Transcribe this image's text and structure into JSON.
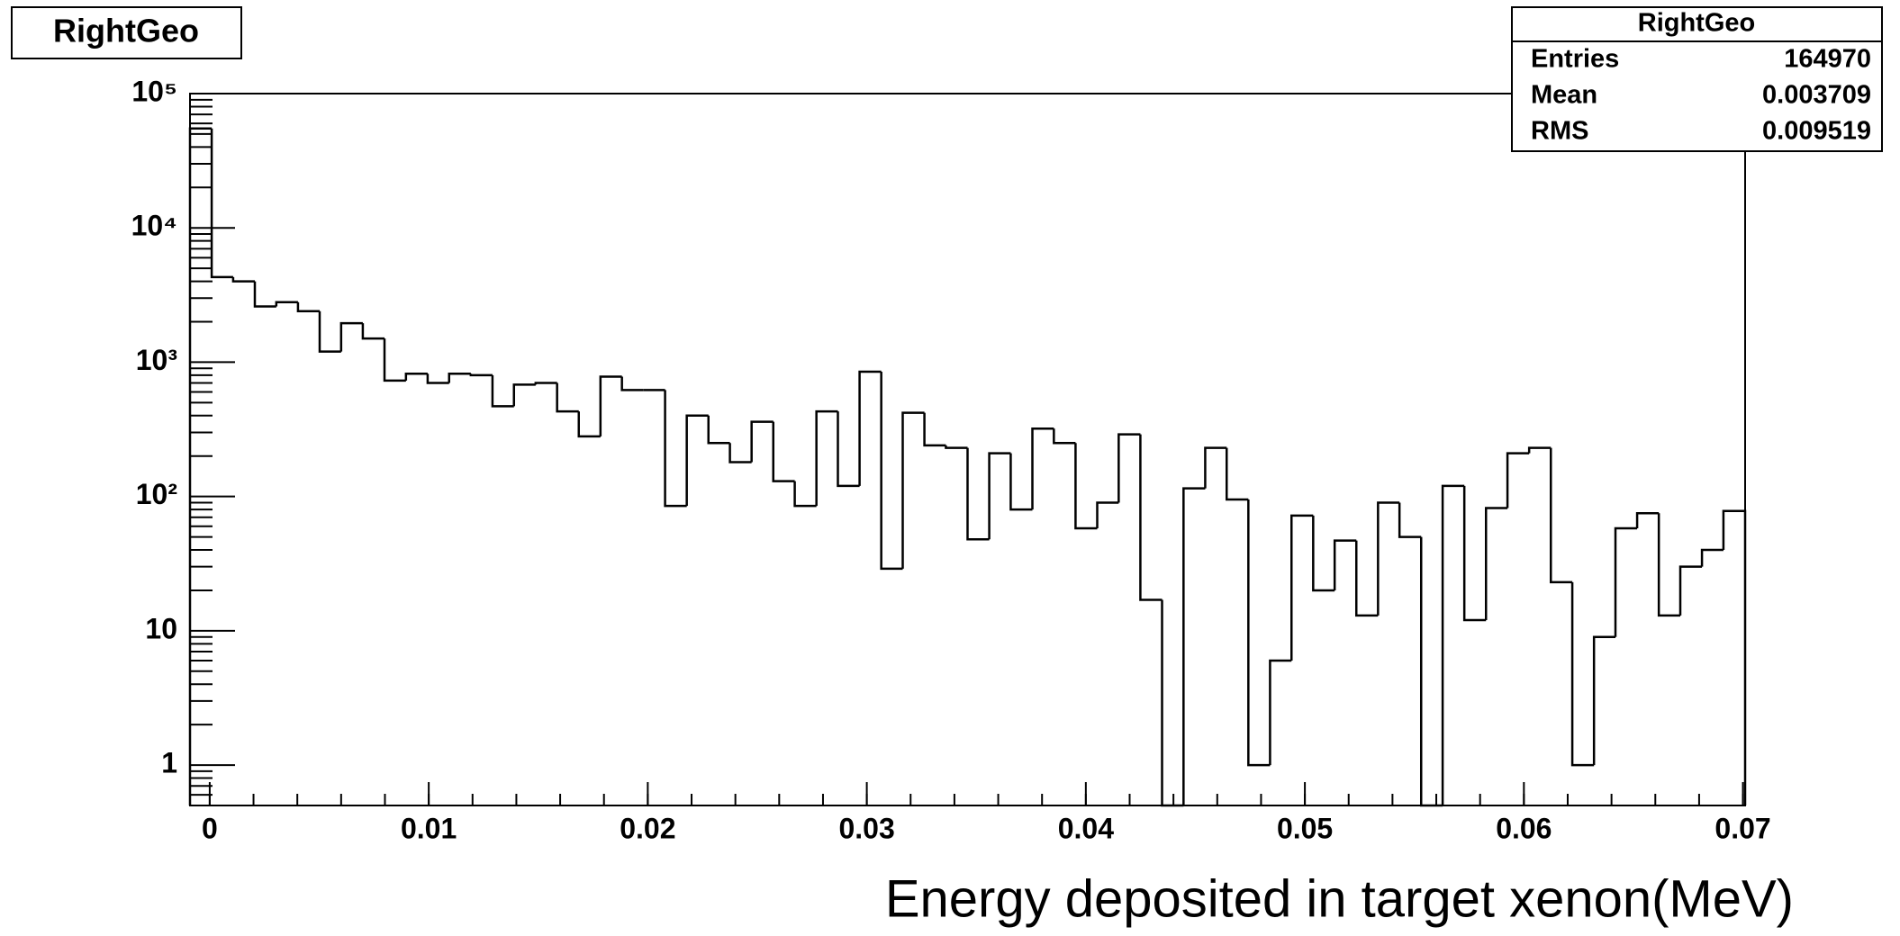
{
  "chart_data": {
    "type": "histogram",
    "title": "RightGeo",
    "x_label": "Energy deposited in target xenon(MeV)",
    "bins": [
      -0.0009,
      9e-05,
      0.00107,
      0.00206,
      0.00304,
      0.00403,
      0.00502,
      0.006,
      0.00699,
      0.00798,
      0.00896,
      0.00995,
      0.01093,
      0.01192,
      0.01291,
      0.01389,
      0.01488,
      0.01586,
      0.01685,
      0.01784,
      0.01882,
      0.01981,
      0.02079,
      0.02178,
      0.02277,
      0.02375,
      0.02474,
      0.02573,
      0.02671,
      0.0277,
      0.02868,
      0.02967,
      0.03066,
      0.03164,
      0.03263,
      0.03361,
      0.0346,
      0.03559,
      0.03657,
      0.03756,
      0.03854,
      0.03953,
      0.04052,
      0.0415,
      0.04249,
      0.04348,
      0.04446,
      0.04545,
      0.04643,
      0.04742,
      0.04841,
      0.04939,
      0.05038,
      0.05136,
      0.05235,
      0.05334,
      0.05432,
      0.05531,
      0.05629,
      0.05728,
      0.05827,
      0.05925,
      0.06024,
      0.06123,
      0.06221,
      0.0632,
      0.06418,
      0.06517,
      0.06616,
      0.06714,
      0.06813,
      0.06911,
      0.0701
    ],
    "values": [
      55000,
      4300,
      4000,
      2600,
      2800,
      2400,
      1200,
      1950,
      1500,
      730,
      820,
      700,
      820,
      800,
      470,
      680,
      700,
      430,
      280,
      780,
      620,
      620,
      85,
      400,
      250,
      180,
      360,
      130,
      85,
      430,
      120,
      850,
      29,
      420,
      240,
      230,
      48,
      210,
      80,
      320,
      250,
      58,
      90,
      290,
      17,
      0,
      115,
      230,
      95,
      1,
      6,
      72,
      20,
      47,
      13,
      90,
      50,
      0,
      120,
      12,
      82,
      210,
      230,
      23,
      1,
      9,
      58,
      75,
      13,
      30,
      40,
      78
    ],
    "color": "#000000",
    "xlim": [
      -0.0009,
      0.0701
    ],
    "xticks": [
      0,
      0.01,
      0.02,
      0.03,
      0.04,
      0.05,
      0.06,
      0.07
    ],
    "ylim": [
      0.5,
      100000
    ],
    "log_y": true,
    "yticks": [
      1,
      10,
      {
        "value": 100,
        "label": "10²"
      },
      {
        "value": 1000,
        "label": "10³"
      },
      {
        "value": 10000,
        "label": "10⁴"
      },
      {
        "value": 100000,
        "label": "10⁵"
      }
    ],
    "stats": {
      "rows": [
        {
          "name": "Entries",
          "value": 164970
        },
        {
          "name": "Mean",
          "value": 0.003709
        },
        {
          "name": "RMS",
          "value": 0.009519
        }
      ]
    }
  }
}
